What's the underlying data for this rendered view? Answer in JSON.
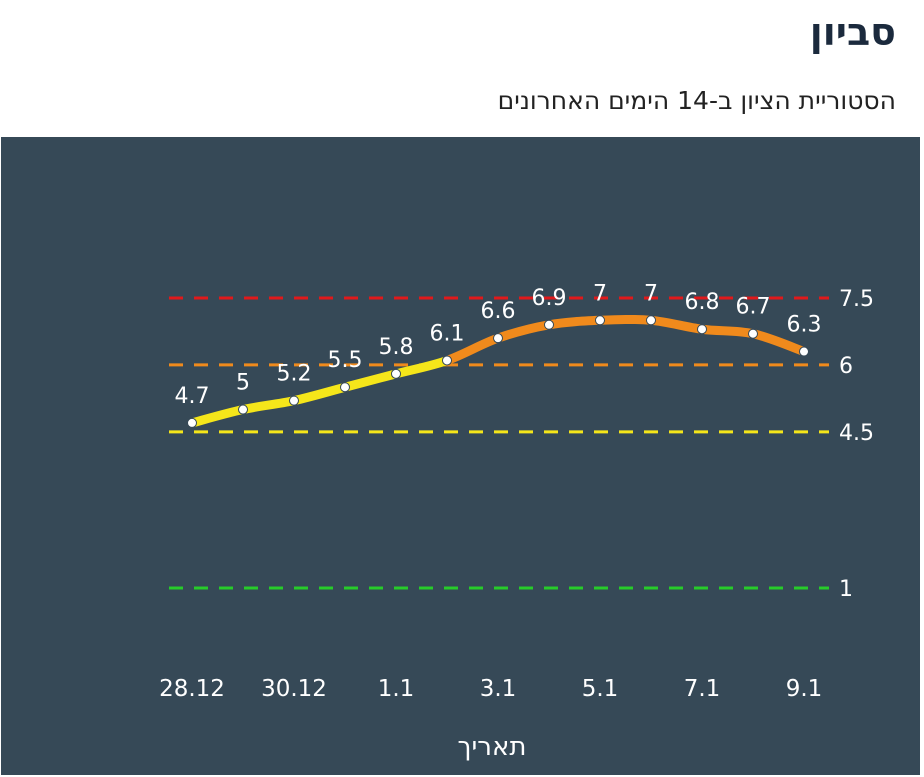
{
  "header": {
    "title": "סביון",
    "subtitle": "הסטוריית הציון ב-14 הימים האחרונים"
  },
  "chart_data": {
    "type": "line",
    "x": [
      "28.12",
      "29.12",
      "30.12",
      "31.12",
      "1.1",
      "2.1",
      "3.1",
      "4.1",
      "5.1",
      "6.1",
      "7.1",
      "8.1",
      "9.1"
    ],
    "values": [
      4.7,
      5,
      5.2,
      5.5,
      5.8,
      6.1,
      6.6,
      6.9,
      7,
      7,
      6.8,
      6.7,
      6.3
    ],
    "x_tick_labels": [
      "28.12",
      "30.12",
      "1.1",
      "3.1",
      "5.1",
      "7.1",
      "9.1"
    ],
    "xlabel": "תאריך",
    "ylabel": "",
    "grid": false,
    "thresholds": [
      {
        "value": 7.5,
        "label": "7.5",
        "color": "#e0191b"
      },
      {
        "value": 6,
        "label": "6",
        "color": "#f08a1c"
      },
      {
        "value": 4.5,
        "label": "4.5",
        "color": "#f5e61a"
      },
      {
        "value": 1,
        "label": "1",
        "color": "#27cc2a"
      }
    ],
    "colors": {
      "low": "#f5e61a",
      "mid": "#f08a1c",
      "background": "#364957",
      "marker": "#ffffff"
    }
  }
}
